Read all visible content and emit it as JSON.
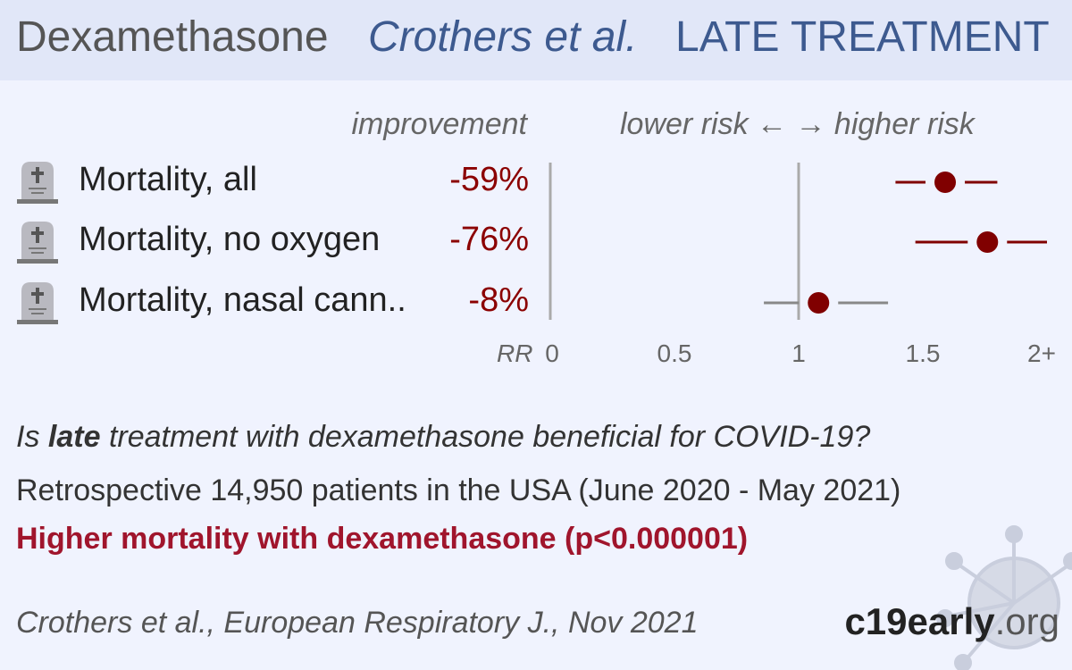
{
  "header": {
    "drug": "Dexamethasone",
    "study": "Crothers et al.",
    "stage": "LATE TREATMENT"
  },
  "chart_data": {
    "type": "forest",
    "column_labels": {
      "improvement": "improvement",
      "risk_direction": "lower risk ←  → higher risk"
    },
    "axis_label": "RR",
    "xlim": [
      0,
      2
    ],
    "ticks": [
      "0",
      "0.5",
      "1",
      "1.5",
      "2+"
    ],
    "tick_values": [
      0,
      0.5,
      1,
      1.5,
      2
    ],
    "reference_line": 1,
    "rows": [
      {
        "label": "Mortality, all",
        "improvement": "-59%",
        "rr": 1.59,
        "ci": [
          1.39,
          1.8
        ],
        "color": "#800000"
      },
      {
        "label": "Mortality, no oxygen",
        "improvement": "-76%",
        "rr": 1.76,
        "ci": [
          1.47,
          2.0
        ],
        "color": "#800000"
      },
      {
        "label": "Mortality, nasal cann..",
        "improvement": "-8%",
        "rr": 1.08,
        "ci": [
          0.86,
          1.36
        ],
        "color": "#888888"
      }
    ],
    "icon": "tombstone-icon",
    "point_color": "#800000"
  },
  "summary": {
    "question_pre": "Is ",
    "question_bold": "late",
    "question_post": " treatment with dexamethasone beneficial for COVID-19?",
    "design": "Retrospective 14,950 patients in the USA (June 2020 - May 2021)",
    "conclusion": "Higher mortality with dexamethasone (p<0.000001)"
  },
  "footer": {
    "citation": "Crothers et al., European Respiratory J., Nov 2021",
    "brand_bold": "c19early",
    "brand_light": ".org"
  }
}
